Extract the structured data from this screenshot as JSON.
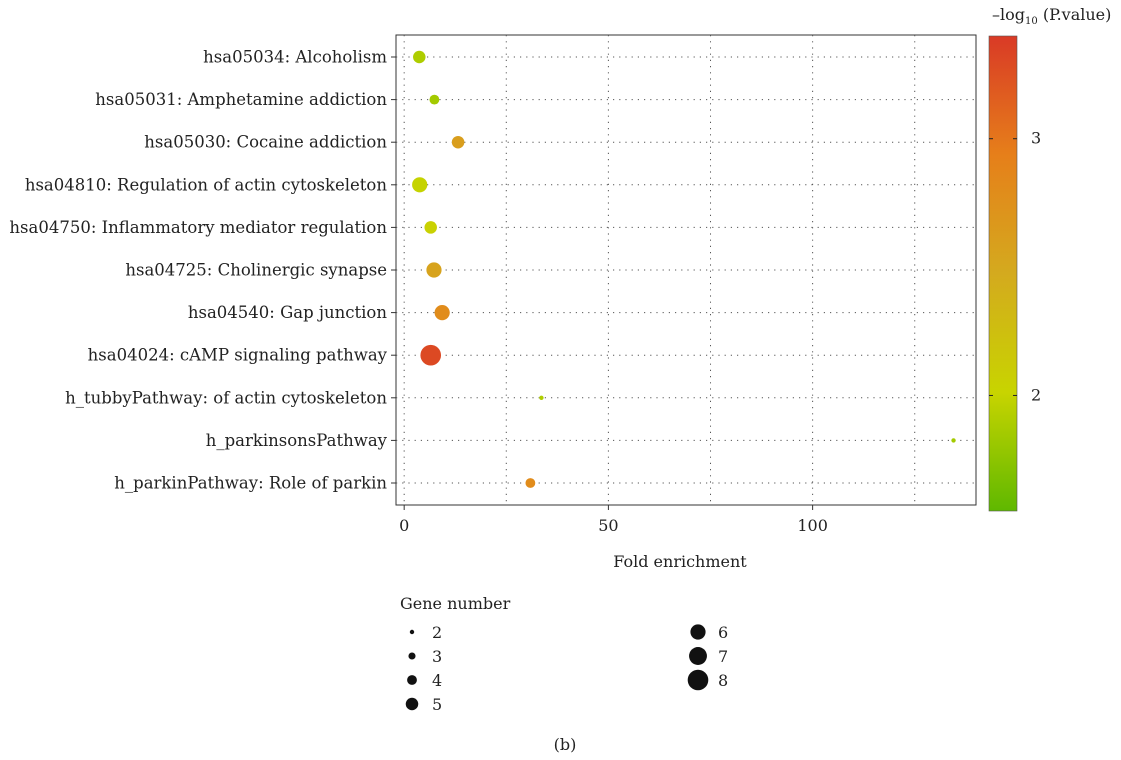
{
  "chart_data": {
    "type": "scatter",
    "xlabel": "Fold enrichment",
    "xlim": [
      -2,
      140
    ],
    "xticks": [
      0,
      50,
      100
    ],
    "x_grid_minor": [
      25,
      75,
      125
    ],
    "grid": true,
    "categories": [
      "hsa05034: Alcoholism",
      "hsa05031: Amphetamine addiction",
      "hsa05030: Cocaine addiction",
      "hsa04810: Regulation of actin cytoskeleton",
      "hsa04750: Inflammatory mediator regulation",
      "hsa04725: Cholinergic synapse",
      "hsa04540: Gap junction",
      "hsa04024: cAMP signaling pathway",
      "h_tubbyPathway: of actin cytoskeleton",
      "h_parkinsonsPathway",
      "h_parkinPathway: Role of parkin"
    ],
    "points": [
      {
        "category": "hsa05034: Alcoholism",
        "x": 3.7,
        "gene_number": 5,
        "neg_log10_p": 1.9
      },
      {
        "category": "hsa05031: Amphetamine addiction",
        "x": 7.4,
        "gene_number": 4,
        "neg_log10_p": 1.85
      },
      {
        "category": "hsa05030: Cocaine addiction",
        "x": 13.2,
        "gene_number": 5,
        "neg_log10_p": 2.6
      },
      {
        "category": "hsa04810: Regulation of actin cytoskeleton",
        "x": 3.8,
        "gene_number": 6,
        "neg_log10_p": 2.0
      },
      {
        "category": "hsa04750: Inflammatory mediator regulation",
        "x": 6.5,
        "gene_number": 5,
        "neg_log10_p": 2.05
      },
      {
        "category": "hsa04725: Cholinergic synapse",
        "x": 7.3,
        "gene_number": 6,
        "neg_log10_p": 2.55
      },
      {
        "category": "hsa04540: Gap junction",
        "x": 9.3,
        "gene_number": 6,
        "neg_log10_p": 2.8
      },
      {
        "category": "hsa04024: cAMP signaling pathway",
        "x": 6.5,
        "gene_number": 8,
        "neg_log10_p": 3.3
      },
      {
        "category": "h_tubbyPathway: of actin cytoskeleton",
        "x": 33.6,
        "gene_number": 2,
        "neg_log10_p": 1.9
      },
      {
        "category": "h_parkinsonsPathway",
        "x": 134.5,
        "gene_number": 2,
        "neg_log10_p": 1.85
      },
      {
        "category": "h_parkinPathway: Role of parkin",
        "x": 30.9,
        "gene_number": 4,
        "neg_log10_p": 2.8
      }
    ],
    "colorbar": {
      "title_prefix": "–log",
      "title_sub": "10",
      "title_suffix": " (P.value)",
      "range": [
        1.55,
        3.4
      ],
      "ticks": [
        2,
        3
      ],
      "colors": [
        "#5fb800",
        "#c8d400",
        "#d4aa1e",
        "#e67f1a",
        "#d93a26"
      ]
    },
    "size_legend": {
      "title": "Gene number",
      "entries": [
        2,
        3,
        4,
        5,
        6,
        7,
        8
      ]
    },
    "panel_label": "(b)"
  }
}
